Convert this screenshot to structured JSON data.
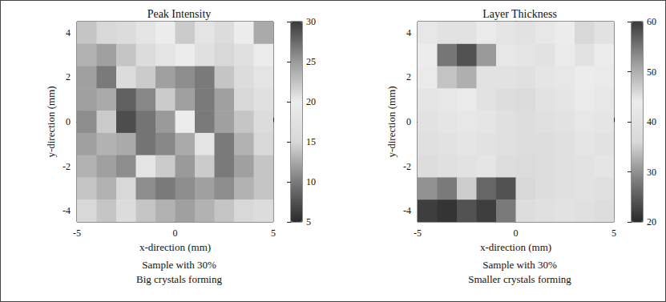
{
  "chart_data": [
    {
      "type": "heatmap",
      "title": "Peak Intensity",
      "x_label": "x-direction (mm)",
      "y_label": "y-direction (mm)",
      "annotations": [
        "Sample with 30%",
        "Big crystals forming"
      ],
      "x": [
        -4.5,
        -3.5,
        -2.5,
        -1.5,
        -0.5,
        0.5,
        1.5,
        2.5,
        3.5,
        4.5
      ],
      "y": [
        4,
        3,
        2,
        1,
        0,
        -1,
        -2,
        -3,
        -4
      ],
      "cells": [
        [
          14,
          15,
          16,
          18,
          20,
          22,
          18,
          16,
          20,
          24
        ],
        [
          13,
          12,
          14,
          16,
          18,
          20,
          17,
          15,
          17,
          20
        ],
        [
          12,
          10,
          16,
          22,
          12,
          11,
          10,
          14,
          16,
          18
        ],
        [
          12,
          24,
          28,
          26,
          22,
          12,
          10,
          12,
          15,
          17
        ],
        [
          11,
          22,
          29,
          27,
          25,
          20,
          10,
          12,
          14,
          16
        ],
        [
          12,
          13,
          24,
          27,
          26,
          24,
          18,
          10,
          13,
          15
        ],
        [
          13,
          12,
          11,
          18,
          22,
          25,
          22,
          10,
          12,
          14
        ],
        [
          14,
          13,
          15,
          11,
          10,
          11,
          12,
          11,
          13,
          14
        ],
        [
          15,
          14,
          16,
          14,
          13,
          12,
          13,
          14,
          15,
          16
        ]
      ],
      "xlim": [
        -5,
        5
      ],
      "ylim": [
        -4.5,
        4.5
      ],
      "xticks": [
        -5,
        0,
        5
      ],
      "yticks": [
        -4,
        -2,
        0,
        2,
        4
      ],
      "color_range": [
        5,
        30
      ],
      "color_ticks": [
        5,
        10,
        15,
        20,
        25,
        30
      ]
    },
    {
      "type": "heatmap",
      "title": "Layer Thickness",
      "x_label": "x-direction (mm)",
      "y_label": "y-direction (mm)",
      "annotations": [
        "Sample with 30%",
        "Smaller crystals forming"
      ],
      "x": [
        -4.5,
        -3.5,
        -2.5,
        -1.5,
        -0.5,
        0.5,
        1.5,
        2.5,
        3.5,
        4.5
      ],
      "y": [
        4,
        3,
        2,
        1,
        0,
        -1,
        -2,
        -3,
        -4
      ],
      "cells": [
        [
          42,
          40,
          45,
          43,
          41,
          40,
          42,
          44,
          46,
          45
        ],
        [
          44,
          55,
          24,
          52,
          42,
          41,
          40,
          43,
          45,
          44
        ],
        [
          43,
          48,
          50,
          45,
          40,
          39,
          41,
          42,
          44,
          43
        ],
        [
          41,
          42,
          43,
          40,
          38,
          37,
          40,
          41,
          43,
          42
        ],
        [
          40,
          41,
          42,
          41,
          39,
          38,
          39,
          40,
          42,
          41
        ],
        [
          39,
          40,
          41,
          40,
          39,
          38,
          38,
          39,
          41,
          40
        ],
        [
          38,
          39,
          40,
          41,
          38,
          37,
          38,
          39,
          40,
          41
        ],
        [
          30,
          28,
          35,
          26,
          24,
          36,
          38,
          39,
          40,
          39
        ],
        [
          22,
          21,
          24,
          22,
          28,
          38,
          39,
          40,
          39,
          38
        ]
      ],
      "xlim": [
        -5,
        5
      ],
      "ylim": [
        -4.5,
        4.5
      ],
      "xticks": [
        -5,
        0,
        5
      ],
      "yticks": [
        -4,
        -2,
        0,
        2,
        4
      ],
      "color_range": [
        20,
        60
      ],
      "color_ticks": [
        20,
        30,
        40,
        50,
        60
      ]
    }
  ]
}
